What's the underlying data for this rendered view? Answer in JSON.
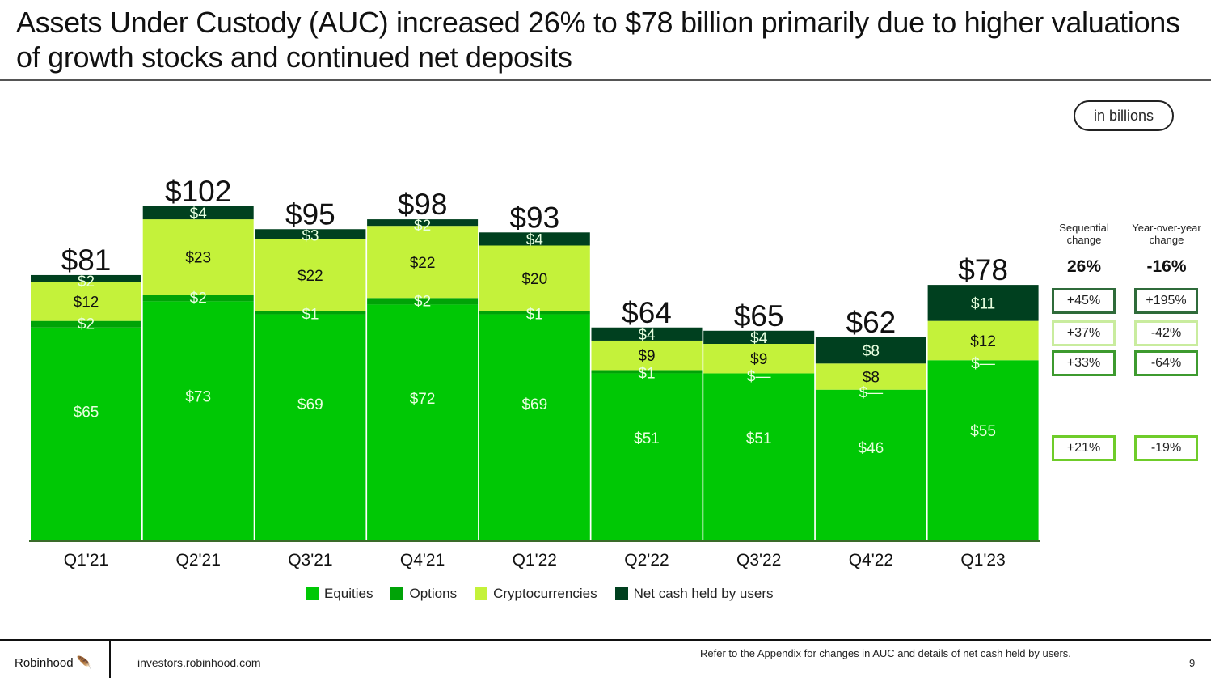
{
  "title": "Assets Under Custody (AUC) increased 26% to $78 billion primarily due to higher valuations of growth stocks and continued net deposits",
  "unit_label": "in billions",
  "colors": {
    "equities": "#00c805",
    "options": "#00a307",
    "crypto": "#c4f23a",
    "cash": "#00401f",
    "box_cash": "#2f6b3a",
    "box_crypto": "#c9ec9e",
    "box_options": "#3d9a2f",
    "box_equities": "#6fcc2a"
  },
  "chart_data": {
    "type": "bar",
    "stacked": true,
    "title": "",
    "xlabel": "",
    "ylabel": "",
    "ylim": [
      0,
      110
    ],
    "grid": false,
    "legend_position": "bottom",
    "categories": [
      "Q1'21",
      "Q2'21",
      "Q3'21",
      "Q4'21",
      "Q1'22",
      "Q2'22",
      "Q3'22",
      "Q4'22",
      "Q1'23"
    ],
    "series": [
      {
        "name": "Equities",
        "key": "equities",
        "values": [
          65,
          73,
          69,
          72,
          69,
          51,
          51,
          46,
          55
        ],
        "labels": [
          "$65",
          "$73",
          "$69",
          "$72",
          "$69",
          "$51",
          "$51",
          "$46",
          "$55"
        ]
      },
      {
        "name": "Options",
        "key": "options",
        "values": [
          2,
          2,
          1,
          2,
          1,
          1,
          0,
          0,
          0
        ],
        "labels": [
          "$2",
          "$2",
          "$1",
          "$2",
          "$1",
          "$1",
          "$—",
          "$—",
          "$—"
        ]
      },
      {
        "name": "Cryptocurrencies",
        "key": "crypto",
        "values": [
          12,
          23,
          22,
          22,
          20,
          9,
          9,
          8,
          12
        ],
        "labels": [
          "$12",
          "$23",
          "$22",
          "$22",
          "$20",
          "$9",
          "$9",
          "$8",
          "$12"
        ]
      },
      {
        "name": "Net cash held by users",
        "key": "cash",
        "values": [
          2,
          4,
          3,
          2,
          4,
          4,
          4,
          8,
          11
        ],
        "labels": [
          "$2",
          "$4",
          "$3",
          "$2",
          "$4",
          "$4",
          "$4",
          "$8",
          "$11"
        ]
      }
    ],
    "totals": [
      81,
      102,
      95,
      98,
      93,
      64,
      65,
      62,
      78
    ],
    "total_labels": [
      "$81",
      "$102",
      "$95",
      "$98",
      "$93",
      "$64",
      "$65",
      "$62",
      "$78"
    ]
  },
  "changes": {
    "sequential_header": "Sequential change",
    "yoy_header": "Year-over-year change",
    "sequential_total": "26%",
    "yoy_total": "-16%",
    "rows": [
      {
        "series": "Net cash held by users",
        "sequential": "+45%",
        "yoy": "+195%"
      },
      {
        "series": "Cryptocurrencies",
        "sequential": "+37%",
        "yoy": "-42%"
      },
      {
        "series": "Options",
        "sequential": "+33%",
        "yoy": "-64%"
      },
      {
        "series": "Equities",
        "sequential": "+21%",
        "yoy": "-19%"
      }
    ]
  },
  "legend": [
    {
      "label": "Equities",
      "key": "equities"
    },
    {
      "label": "Options",
      "key": "options"
    },
    {
      "label": "Cryptocurrencies",
      "key": "crypto"
    },
    {
      "label": "Net cash held by users",
      "key": "cash"
    }
  ],
  "footer": {
    "brand": "Robinhood",
    "brand_icon": "feather-icon",
    "site": "investors.robinhood.com",
    "note": "Refer to the Appendix for changes in AUC and details of net cash held by users.",
    "page": "9"
  }
}
